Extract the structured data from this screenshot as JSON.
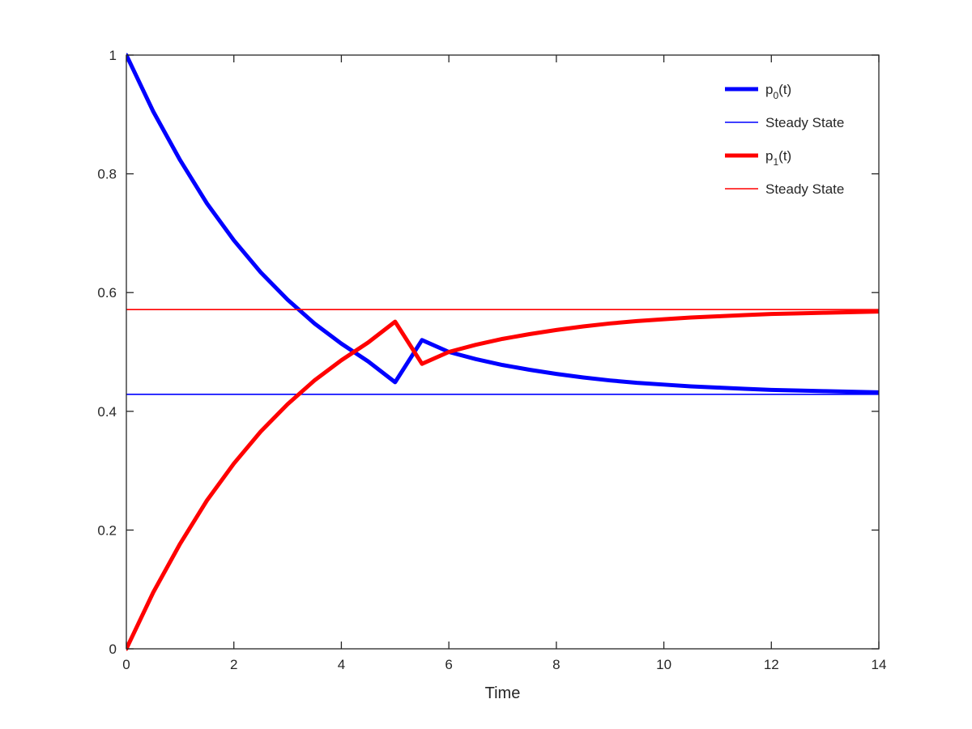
{
  "chart_data": {
    "type": "line",
    "xlabel": "Time",
    "ylabel": "",
    "title": "",
    "xlim": [
      0,
      14
    ],
    "ylim": [
      0,
      1
    ],
    "xticks": [
      0,
      2,
      4,
      6,
      8,
      10,
      12,
      14
    ],
    "xtick_labels": [
      "0",
      "2",
      "4",
      "6",
      "8",
      "10",
      "12",
      "14"
    ],
    "yticks": [
      0,
      0.2,
      0.4,
      0.6,
      0.8,
      1
    ],
    "ytick_labels": [
      "0",
      "0.2",
      "0.4",
      "0.6",
      "0.8",
      "1"
    ],
    "grid": false,
    "legend_position": "top-right",
    "series": [
      {
        "name": "p0(t)",
        "legend_base": "p",
        "legend_sub": "0",
        "legend_tail": "(t)",
        "color": "#0000ff",
        "style": "thick",
        "x": [
          0,
          0.5,
          1,
          1.5,
          2,
          2.5,
          3,
          3.5,
          4,
          4.5,
          5,
          5.5,
          6,
          6.5,
          7,
          7.5,
          8,
          8.5,
          9,
          9.5,
          10,
          10.5,
          11,
          11.5,
          12,
          12.5,
          13,
          13.5,
          14
        ],
        "y": [
          1.0,
          0.905,
          0.823,
          0.75,
          0.688,
          0.634,
          0.588,
          0.548,
          0.514,
          0.484,
          0.449,
          0.52,
          0.5,
          0.488,
          0.478,
          0.47,
          0.463,
          0.457,
          0.452,
          0.448,
          0.445,
          0.442,
          0.44,
          0.438,
          0.436,
          0.435,
          0.434,
          0.433,
          0.432
        ]
      },
      {
        "name": "Steady State",
        "legend_base": "Steady State",
        "color": "#0000ff",
        "style": "thin",
        "x": [
          0,
          14
        ],
        "y": [
          0.4286,
          0.4286
        ]
      },
      {
        "name": "p1(t)",
        "legend_base": "p",
        "legend_sub": "1",
        "legend_tail": "(t)",
        "color": "#ff0000",
        "style": "thick",
        "x": [
          0,
          0.5,
          1,
          1.5,
          2,
          2.5,
          3,
          3.5,
          4,
          4.5,
          5,
          5.5,
          6,
          6.5,
          7,
          7.5,
          8,
          8.5,
          9,
          9.5,
          10,
          10.5,
          11,
          11.5,
          12,
          12.5,
          13,
          13.5,
          14
        ],
        "y": [
          0.0,
          0.095,
          0.177,
          0.25,
          0.312,
          0.366,
          0.412,
          0.452,
          0.486,
          0.516,
          0.551,
          0.48,
          0.5,
          0.512,
          0.522,
          0.53,
          0.537,
          0.543,
          0.548,
          0.552,
          0.555,
          0.558,
          0.56,
          0.562,
          0.564,
          0.565,
          0.566,
          0.567,
          0.568
        ]
      },
      {
        "name": "Steady State",
        "legend_base": "Steady State",
        "color": "#ff0000",
        "style": "thin",
        "x": [
          0,
          14
        ],
        "y": [
          0.5714,
          0.5714
        ]
      }
    ]
  }
}
